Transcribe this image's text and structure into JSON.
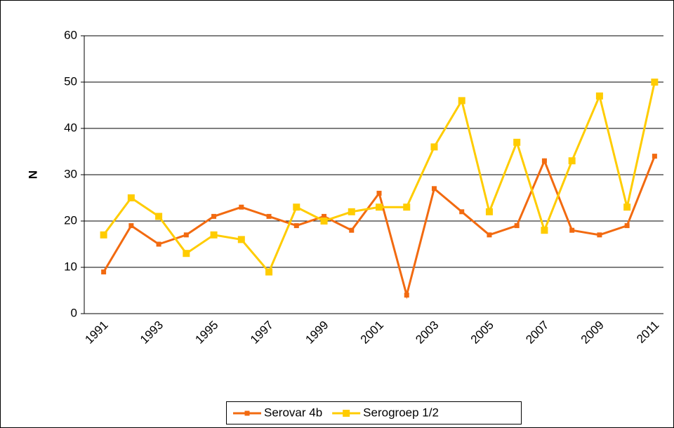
{
  "chart_data": {
    "type": "line",
    "y_label": "N",
    "categories": [
      "1991",
      null,
      "1993",
      null,
      "1995",
      null,
      "1997",
      null,
      "1999",
      null,
      "2001",
      null,
      "2003",
      null,
      "2005",
      null,
      "2007",
      null,
      "2009",
      null,
      "2011"
    ],
    "series": [
      {
        "name": "Serovar 4b",
        "color": "#f26a10",
        "values": [
          9,
          19,
          15,
          17,
          21,
          23,
          21,
          19,
          21,
          18,
          26,
          4,
          27,
          22,
          17,
          19,
          33,
          18,
          17,
          19,
          34
        ]
      },
      {
        "name": "Serogroep 1/2",
        "color": "#ffcc00",
        "values": [
          17,
          25,
          21,
          13,
          17,
          16,
          9,
          23,
          20,
          22,
          23,
          23,
          36,
          46,
          22,
          37,
          18,
          33,
          47,
          23,
          50
        ]
      }
    ],
    "ylim": [
      0,
      60
    ],
    "yticks": [
      0,
      10,
      20,
      30,
      40,
      50,
      60
    ],
    "grid": true,
    "legend": "bottom"
  }
}
